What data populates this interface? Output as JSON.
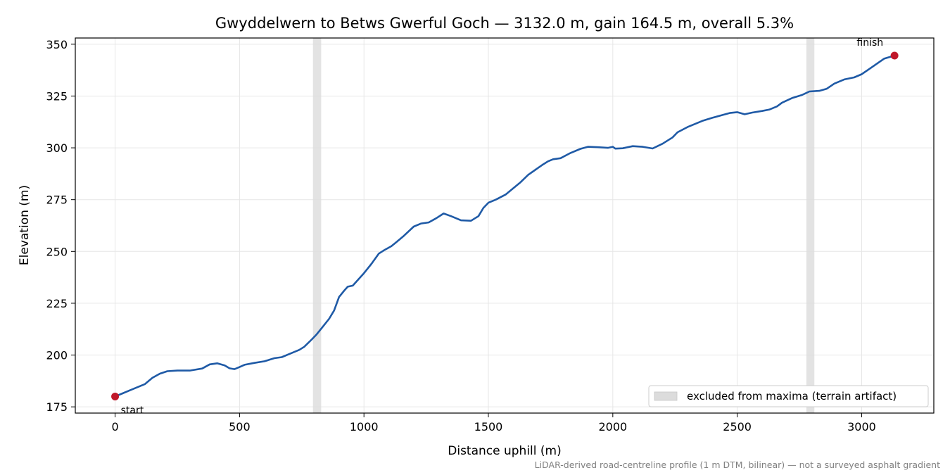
{
  "chart_data": {
    "type": "line",
    "title": "Gwyddelwern to Betws Gwerful Goch — 3132.0 m, gain 164.5 m, overall 5.3%",
    "xlabel": "Distance uphill (m)",
    "ylabel": "Elevation (m)",
    "xlim": [
      -160,
      3290
    ],
    "ylim": [
      172,
      353
    ],
    "xticks": [
      0,
      500,
      1000,
      1500,
      2000,
      2500,
      3000
    ],
    "yticks": [
      175,
      200,
      225,
      250,
      275,
      300,
      325,
      350
    ],
    "grid": true,
    "legend_position": "lower-right",
    "footnote": "LiDAR-derived road-centreline profile (1 m DTM, bilinear) — not a surveyed asphalt gradient",
    "colors": {
      "line": "#1f5aa6",
      "marker": "#c0182a",
      "band": "#dcdcdc"
    },
    "excluded_bands": [
      {
        "label": "excluded from maxima (terrain artifact)",
        "x0": 795,
        "x1": 828
      },
      {
        "x0": 2778,
        "x1": 2810
      }
    ],
    "markers": [
      {
        "label": "start",
        "x": 0,
        "y": 180.0
      },
      {
        "label": "finish",
        "x": 3132,
        "y": 344.5
      }
    ],
    "series": [
      {
        "points": [
          [
            0,
            180.0
          ],
          [
            30,
            181.5
          ],
          [
            60,
            183.0
          ],
          [
            90,
            184.5
          ],
          [
            120,
            186.0
          ],
          [
            150,
            189.0
          ],
          [
            180,
            191.0
          ],
          [
            210,
            192.2
          ],
          [
            250,
            192.5
          ],
          [
            300,
            192.5
          ],
          [
            350,
            193.5
          ],
          [
            380,
            195.5
          ],
          [
            410,
            196.0
          ],
          [
            440,
            195.0
          ],
          [
            460,
            193.6
          ],
          [
            480,
            193.2
          ],
          [
            500,
            194.2
          ],
          [
            520,
            195.3
          ],
          [
            560,
            196.2
          ],
          [
            600,
            197.0
          ],
          [
            640,
            198.5
          ],
          [
            670,
            199.0
          ],
          [
            700,
            200.5
          ],
          [
            740,
            202.5
          ],
          [
            760,
            204.0
          ],
          [
            790,
            207.5
          ],
          [
            810,
            210.0
          ],
          [
            830,
            213.0
          ],
          [
            860,
            217.5
          ],
          [
            880,
            221.5
          ],
          [
            900,
            228.0
          ],
          [
            920,
            231.0
          ],
          [
            935,
            233.0
          ],
          [
            955,
            233.5
          ],
          [
            970,
            235.5
          ],
          [
            1000,
            239.5
          ],
          [
            1030,
            244.0
          ],
          [
            1060,
            249.0
          ],
          [
            1080,
            250.5
          ],
          [
            1110,
            252.5
          ],
          [
            1130,
            254.5
          ],
          [
            1160,
            257.5
          ],
          [
            1200,
            262.0
          ],
          [
            1230,
            263.5
          ],
          [
            1260,
            264.0
          ],
          [
            1290,
            266.0
          ],
          [
            1320,
            268.3
          ],
          [
            1350,
            267.0
          ],
          [
            1390,
            265.0
          ],
          [
            1430,
            264.8
          ],
          [
            1460,
            267.0
          ],
          [
            1480,
            271.0
          ],
          [
            1500,
            273.5
          ],
          [
            1530,
            275.0
          ],
          [
            1570,
            277.5
          ],
          [
            1600,
            280.5
          ],
          [
            1630,
            283.5
          ],
          [
            1660,
            287.0
          ],
          [
            1690,
            289.5
          ],
          [
            1720,
            292.0
          ],
          [
            1740,
            293.5
          ],
          [
            1760,
            294.5
          ],
          [
            1790,
            295.0
          ],
          [
            1830,
            297.5
          ],
          [
            1870,
            299.5
          ],
          [
            1900,
            300.5
          ],
          [
            1940,
            300.3
          ],
          [
            1980,
            300.0
          ],
          [
            2000,
            300.5
          ],
          [
            2010,
            299.6
          ],
          [
            2040,
            299.8
          ],
          [
            2080,
            300.8
          ],
          [
            2120,
            300.5
          ],
          [
            2160,
            299.7
          ],
          [
            2200,
            302.0
          ],
          [
            2240,
            305.0
          ],
          [
            2260,
            307.5
          ],
          [
            2300,
            310.0
          ],
          [
            2330,
            311.5
          ],
          [
            2360,
            313.0
          ],
          [
            2400,
            314.5
          ],
          [
            2440,
            315.8
          ],
          [
            2470,
            316.8
          ],
          [
            2500,
            317.2
          ],
          [
            2530,
            316.2
          ],
          [
            2560,
            317.0
          ],
          [
            2600,
            317.8
          ],
          [
            2630,
            318.5
          ],
          [
            2660,
            320.0
          ],
          [
            2680,
            321.8
          ],
          [
            2720,
            324.0
          ],
          [
            2760,
            325.5
          ],
          [
            2790,
            327.2
          ],
          [
            2830,
            327.5
          ],
          [
            2860,
            328.5
          ],
          [
            2890,
            331.0
          ],
          [
            2930,
            333.0
          ],
          [
            2970,
            334.0
          ],
          [
            3000,
            335.5
          ],
          [
            3030,
            338.0
          ],
          [
            3060,
            340.5
          ],
          [
            3090,
            343.0
          ],
          [
            3132,
            344.5
          ]
        ]
      }
    ]
  }
}
